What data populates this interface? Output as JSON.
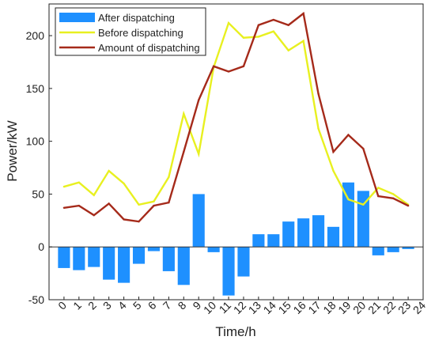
{
  "chart_data": {
    "type": "bar",
    "xlabel": "Time/h",
    "ylabel": "Power/kW",
    "xlim": [
      -1,
      24
    ],
    "ylim": [
      -50,
      230
    ],
    "x_ticks": [
      "0",
      "1",
      "2",
      "3",
      "4",
      "5",
      "6",
      "7",
      "8",
      "9",
      "10",
      "11",
      "12",
      "13",
      "14",
      "15",
      "16",
      "17",
      "18",
      "19",
      "20",
      "21",
      "22",
      "23",
      "24"
    ],
    "y_ticks": [
      -50,
      0,
      50,
      100,
      150,
      200
    ],
    "grid": false,
    "legend_position": "top-left",
    "x": [
      0,
      1,
      2,
      3,
      4,
      5,
      6,
      7,
      8,
      9,
      10,
      11,
      12,
      13,
      14,
      15,
      16,
      17,
      18,
      19,
      20,
      21,
      22,
      23
    ],
    "series": [
      {
        "name": "After dispatching",
        "kind": "bar",
        "color": "#1e90ff",
        "values": [
          -20,
          -22,
          -19,
          -31,
          -34,
          -16,
          -4,
          -23,
          -36,
          50,
          -5,
          -46,
          -28,
          12,
          12,
          24,
          27,
          30,
          19,
          61,
          53,
          -8,
          -5,
          -2
        ]
      },
      {
        "name": "Before dispatching",
        "kind": "line",
        "color": "#e8f020",
        "values": [
          57,
          61,
          49,
          72,
          60,
          40,
          43,
          66,
          126,
          88,
          170,
          212,
          198,
          199,
          204,
          186,
          195,
          112,
          72,
          45,
          40,
          56,
          50,
          40
        ]
      },
      {
        "name": "Amount of dispatching",
        "kind": "line",
        "color": "#a52a1a",
        "values": [
          37,
          39,
          30,
          41,
          26,
          24,
          39,
          42,
          90,
          139,
          171,
          166,
          171,
          210,
          215,
          210,
          221,
          145,
          90,
          106,
          93,
          48,
          46,
          39
        ]
      }
    ]
  }
}
